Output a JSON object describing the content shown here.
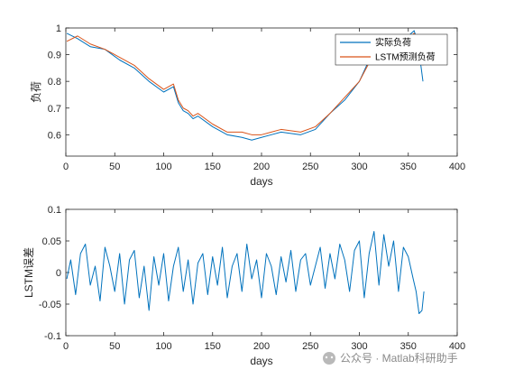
{
  "chart_data": [
    {
      "type": "line",
      "title": "",
      "xlabel": "days",
      "ylabel": "负荷",
      "xlim": [
        0,
        400
      ],
      "ylim": [
        0.52,
        1.0
      ],
      "xticks": [
        0,
        50,
        100,
        150,
        200,
        250,
        300,
        350,
        400
      ],
      "xtick_labels": [
        "0",
        "50",
        "100",
        "150",
        "200",
        "250",
        "300",
        "350",
        "400"
      ],
      "yticks": [
        0.6,
        0.7,
        0.8,
        0.9,
        1.0
      ],
      "ytick_labels": [
        "0.6",
        "0.7",
        "0.8",
        "0.9",
        "1"
      ],
      "grid": false,
      "legend_position": "top-right",
      "series": [
        {
          "name": "实际负荷",
          "color": "#0072BD",
          "x": [
            1,
            12,
            25,
            40,
            55,
            70,
            85,
            100,
            110,
            115,
            120,
            125,
            130,
            135,
            150,
            165,
            180,
            190,
            200,
            210,
            220,
            240,
            255,
            270,
            285,
            300,
            310,
            320,
            330,
            340,
            350,
            356,
            360,
            365
          ],
          "values": [
            0.98,
            0.96,
            0.93,
            0.92,
            0.88,
            0.85,
            0.8,
            0.76,
            0.78,
            0.72,
            0.69,
            0.68,
            0.66,
            0.67,
            0.63,
            0.6,
            0.59,
            0.58,
            0.59,
            0.6,
            0.61,
            0.6,
            0.62,
            0.68,
            0.73,
            0.8,
            0.88,
            0.91,
            0.93,
            0.95,
            0.97,
            0.99,
            0.94,
            0.8
          ]
        },
        {
          "name": "LSTM预测负荷",
          "color": "#D95319",
          "x": [
            1,
            12,
            25,
            40,
            55,
            70,
            85,
            100,
            110,
            115,
            120,
            125,
            130,
            135,
            150,
            165,
            180,
            190,
            200,
            210,
            220,
            240,
            255,
            270,
            285,
            300,
            310,
            320,
            330,
            340,
            350,
            356,
            360,
            365
          ],
          "values": [
            0.95,
            0.97,
            0.94,
            0.92,
            0.89,
            0.86,
            0.81,
            0.77,
            0.79,
            0.73,
            0.7,
            0.69,
            0.67,
            0.68,
            0.64,
            0.61,
            0.61,
            0.6,
            0.6,
            0.61,
            0.62,
            0.61,
            0.63,
            0.68,
            0.74,
            0.8,
            0.87,
            0.9,
            0.93,
            0.94,
            0.96,
            0.98,
            0.95,
            0.86
          ]
        }
      ]
    },
    {
      "type": "line",
      "title": "",
      "xlabel": "days",
      "ylabel": "LSTM误差",
      "xlim": [
        0,
        400
      ],
      "ylim": [
        -0.1,
        0.1
      ],
      "xticks": [
        0,
        50,
        100,
        150,
        200,
        250,
        300,
        350,
        400
      ],
      "xtick_labels": [
        "0",
        "50",
        "100",
        "150",
        "200",
        "250",
        "300",
        "350",
        "400"
      ],
      "yticks": [
        -0.1,
        -0.05,
        0,
        0.05,
        0.1
      ],
      "ytick_labels": [
        "-0.1",
        "-0.05",
        "0",
        "0.05",
        "0.1"
      ],
      "grid": false,
      "legend_position": "none",
      "series": [
        {
          "color": "#0072BD",
          "x": [
            1,
            5,
            10,
            15,
            20,
            25,
            30,
            35,
            40,
            45,
            50,
            55,
            60,
            65,
            70,
            75,
            80,
            85,
            90,
            95,
            100,
            105,
            110,
            115,
            120,
            125,
            130,
            135,
            140,
            145,
            150,
            155,
            160,
            165,
            170,
            175,
            180,
            185,
            190,
            195,
            200,
            205,
            210,
            215,
            220,
            225,
            230,
            235,
            240,
            245,
            250,
            255,
            260,
            265,
            270,
            275,
            280,
            285,
            290,
            295,
            300,
            305,
            310,
            315,
            320,
            325,
            330,
            335,
            340,
            345,
            350,
            355,
            358,
            361,
            364,
            366
          ],
          "values": [
            -0.01,
            0.02,
            -0.035,
            0.03,
            0.045,
            -0.02,
            0.01,
            -0.045,
            0.04,
            0.01,
            -0.03,
            0.03,
            -0.05,
            0.02,
            0.035,
            -0.04,
            0.01,
            -0.06,
            0.025,
            -0.02,
            0.03,
            -0.045,
            0.01,
            0.04,
            -0.03,
            0.02,
            -0.05,
            0.015,
            0.03,
            -0.035,
            0.025,
            -0.02,
            0.04,
            -0.04,
            0.01,
            0.03,
            -0.03,
            0.045,
            -0.01,
            0.02,
            -0.04,
            0.03,
            0.01,
            -0.035,
            0.025,
            -0.015,
            0.035,
            -0.03,
            0.02,
            0.03,
            -0.02,
            0.01,
            0.04,
            -0.025,
            0.03,
            -0.01,
            0.045,
            0.02,
            -0.03,
            0.035,
            0.05,
            -0.04,
            0.03,
            0.065,
            -0.02,
            0.06,
            0.01,
            0.05,
            -0.03,
            0.04,
            0.025,
            -0.01,
            -0.03,
            -0.065,
            -0.06,
            -0.03
          ]
        }
      ]
    }
  ],
  "watermark": {
    "text": "公众号 · Matlab科研助手"
  }
}
